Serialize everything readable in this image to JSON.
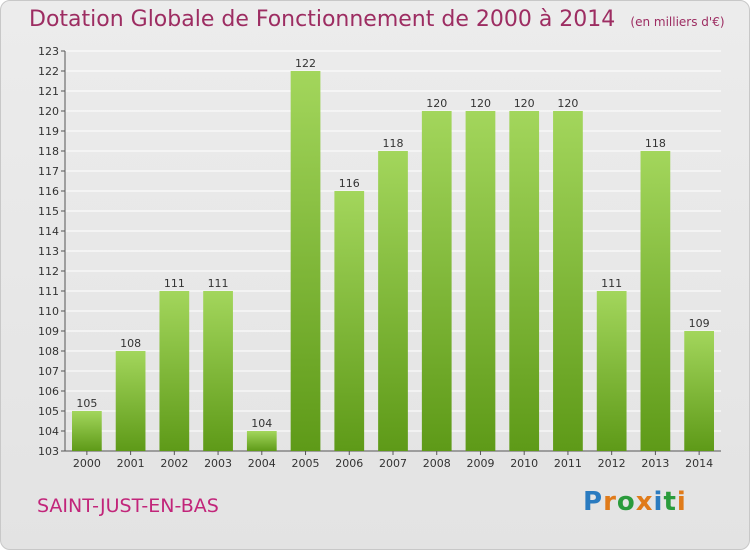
{
  "header": {
    "title": "Dotation Globale de Fonctionnement de 2000 à 2014",
    "unit": "(en milliers d'€)"
  },
  "footer": {
    "commune": "SAINT-JUST-EN-BAS",
    "logo_text": "Proxiti"
  },
  "colors": {
    "title": "#9d2d62",
    "commune": "#c2257a",
    "bar_top": "#a3d65c",
    "bar_bottom": "#5e9a18",
    "logo_letters": [
      "#2a7bc0",
      "#e07b1a",
      "#2a9b3c",
      "#e07b1a",
      "#2a7bc0",
      "#2a9b3c",
      "#e07b1a"
    ]
  },
  "chart_data": {
    "type": "bar",
    "categories": [
      "2000",
      "2001",
      "2002",
      "2003",
      "2004",
      "2005",
      "2006",
      "2007",
      "2008",
      "2009",
      "2010",
      "2011",
      "2012",
      "2013",
      "2014"
    ],
    "values": [
      105,
      108,
      111,
      111,
      104,
      122,
      116,
      118,
      120,
      120,
      120,
      120,
      111,
      118,
      109
    ],
    "ylim": [
      103,
      123
    ],
    "yticks": [
      103,
      104,
      105,
      106,
      107,
      108,
      109,
      110,
      111,
      112,
      113,
      114,
      115,
      116,
      117,
      118,
      119,
      120,
      121,
      122,
      123
    ],
    "grid": true,
    "data_labels": true
  }
}
